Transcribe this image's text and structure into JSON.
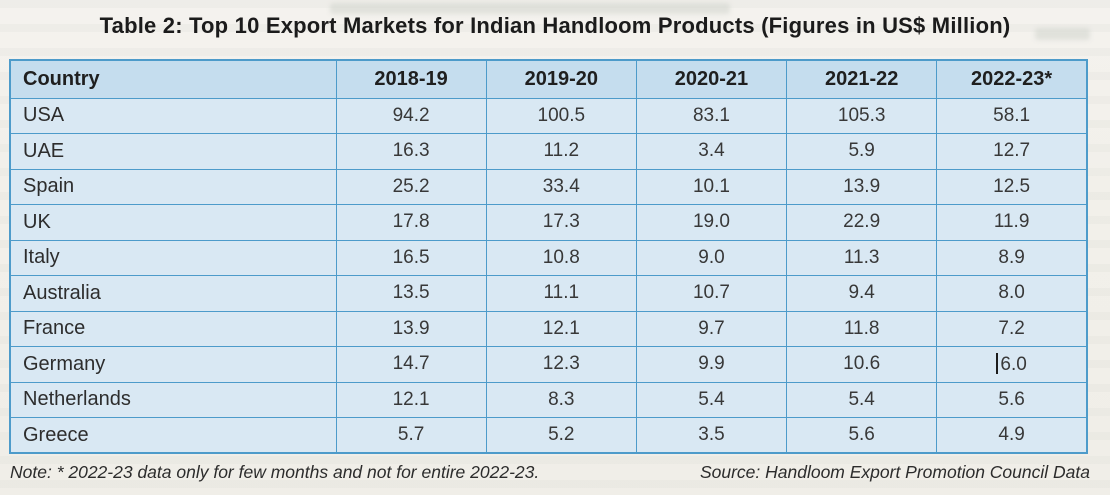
{
  "title": "Table 2: Top 10 Export Markets for Indian Handloom Products (Figures in US$ Million)",
  "note": "Note: * 2022-23 data only for few months and not for entire 2022-23.",
  "source": "Source: Handloom Export Promotion Council Data",
  "colors": {
    "table_border": "#4d9bca",
    "header_background": "#c5ddee",
    "cell_background": "#d9e8f3",
    "title_text": "#1b1b1b"
  },
  "chart_data": {
    "type": "table",
    "title": "Table 2: Top 10 Export Markets for Indian Handloom Products (Figures in US$ Million)",
    "columns": [
      "Country",
      "2018-19",
      "2019-20",
      "2020-21",
      "2021-22",
      "2022-23*"
    ],
    "rows": [
      [
        "USA",
        "94.2",
        "100.5",
        "83.1",
        "105.3",
        "58.1"
      ],
      [
        "UAE",
        "16.3",
        "11.2",
        "3.4",
        "5.9",
        "12.7"
      ],
      [
        "Spain",
        "25.2",
        "33.4",
        "10.1",
        "13.9",
        "12.5"
      ],
      [
        "UK",
        "17.8",
        "17.3",
        "19.0",
        "22.9",
        "11.9"
      ],
      [
        "Italy",
        "16.5",
        "10.8",
        "9.0",
        "11.3",
        "8.9"
      ],
      [
        "Australia",
        "13.5",
        "11.1",
        "10.7",
        "9.4",
        "8.0"
      ],
      [
        "France",
        "13.9",
        "12.1",
        "9.7",
        "11.8",
        "7.2"
      ],
      [
        "Germany",
        "14.7",
        "12.3",
        "9.9",
        "10.6",
        "6.0"
      ],
      [
        "Netherlands",
        "12.1",
        "8.3",
        "5.4",
        "5.4",
        "5.6"
      ],
      [
        "Greece",
        "5.7",
        "5.2",
        "3.5",
        "5.6",
        "4.9"
      ]
    ]
  }
}
